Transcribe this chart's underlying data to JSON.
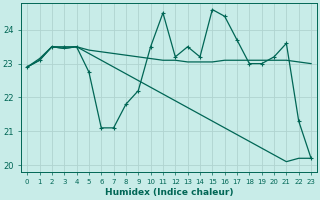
{
  "xlabel": "Humidex (Indice chaleur)",
  "background_color": "#c8ece8",
  "grid_color": "#b0d4d0",
  "line_color": "#006655",
  "xlim": [
    -0.5,
    23.5
  ],
  "ylim": [
    19.8,
    24.8
  ],
  "yticks": [
    20,
    21,
    22,
    23,
    24
  ],
  "xticks": [
    0,
    1,
    2,
    3,
    4,
    5,
    6,
    7,
    8,
    9,
    10,
    11,
    12,
    13,
    14,
    15,
    16,
    17,
    18,
    19,
    20,
    21,
    22,
    23
  ],
  "series1": [
    22.9,
    23.1,
    23.5,
    23.5,
    23.5,
    22.75,
    21.1,
    21.1,
    21.8,
    22.2,
    23.5,
    24.5,
    23.2,
    23.5,
    23.2,
    24.6,
    24.4,
    23.7,
    23.0,
    23.0,
    23.2,
    23.6,
    21.3,
    20.2
  ],
  "series2": [
    22.9,
    23.15,
    23.5,
    23.45,
    23.5,
    23.4,
    23.35,
    23.3,
    23.25,
    23.2,
    23.15,
    23.1,
    23.1,
    23.05,
    23.05,
    23.05,
    23.1,
    23.1,
    23.1,
    23.1,
    23.1,
    23.1,
    23.05,
    23.0
  ],
  "series3": [
    22.9,
    23.1,
    23.5,
    23.45,
    23.5,
    23.3,
    23.1,
    22.9,
    22.7,
    22.5,
    22.3,
    22.1,
    21.9,
    21.7,
    21.5,
    21.3,
    21.1,
    20.9,
    20.7,
    20.5,
    20.3,
    20.1,
    20.2,
    20.2
  ]
}
